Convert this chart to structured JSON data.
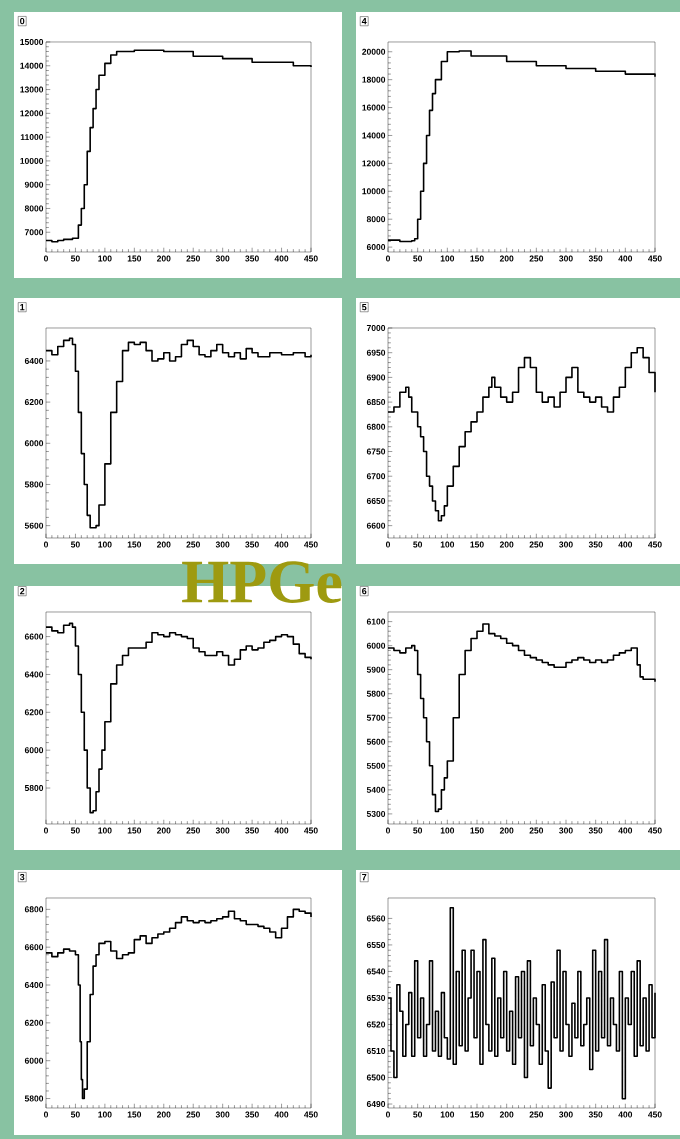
{
  "chart_data": [
    {
      "type": "step",
      "title": "0",
      "x": [
        0,
        10,
        20,
        30,
        45,
        50,
        55,
        60,
        65,
        70,
        75,
        80,
        85,
        90,
        100,
        110,
        120,
        150,
        200,
        250,
        300,
        350,
        400,
        420,
        450
      ],
      "series": [
        {
          "color": "#000000",
          "values": [
            6650,
            6600,
            6650,
            6700,
            6750,
            6750,
            7300,
            8000,
            9000,
            10400,
            11400,
            12200,
            13000,
            13600,
            14100,
            14450,
            14600,
            14650,
            14600,
            14400,
            14300,
            14150,
            14150,
            14000,
            13950
          ]
        }
      ],
      "xlim": [
        0,
        450
      ],
      "xticks": [
        0,
        50,
        100,
        150,
        200,
        250,
        300,
        350,
        400,
        450
      ],
      "ylim": [
        6170,
        15000
      ],
      "yticks": [
        7000,
        8000,
        9000,
        10000,
        11000,
        12000,
        13000,
        14000,
        15000
      ]
    },
    {
      "type": "step",
      "title": "4",
      "x": [
        0,
        20,
        40,
        45,
        50,
        55,
        60,
        65,
        70,
        75,
        80,
        90,
        100,
        120,
        140,
        200,
        250,
        300,
        350,
        400,
        450
      ],
      "series": [
        {
          "color": "#000000",
          "values": [
            6500,
            6400,
            6450,
            6600,
            8000,
            10000,
            12000,
            14000,
            15800,
            17000,
            18000,
            19300,
            20000,
            20050,
            19700,
            19300,
            19000,
            18800,
            18600,
            18400,
            18200
          ]
        }
      ],
      "xlim": [
        0,
        450
      ],
      "xticks": [
        0,
        50,
        100,
        150,
        200,
        250,
        300,
        350,
        400,
        450
      ],
      "ylim": [
        5650,
        20700
      ],
      "yticks": [
        6000,
        8000,
        10000,
        12000,
        14000,
        16000,
        18000,
        20000
      ]
    },
    {
      "type": "step",
      "title": "1",
      "annotations": [
        "HPGe"
      ],
      "x": [
        0,
        10,
        20,
        30,
        40,
        45,
        50,
        55,
        60,
        65,
        70,
        75,
        85,
        90,
        100,
        110,
        120,
        130,
        140,
        150,
        160,
        170,
        180,
        190,
        200,
        210,
        220,
        230,
        240,
        250,
        260,
        270,
        280,
        290,
        300,
        310,
        320,
        330,
        340,
        350,
        360,
        380,
        400,
        420,
        440,
        450
      ],
      "series": [
        {
          "color": "#000000",
          "values": [
            6450,
            6430,
            6470,
            6500,
            6510,
            6480,
            6350,
            6150,
            5950,
            5800,
            5650,
            5590,
            5600,
            5700,
            5900,
            6150,
            6300,
            6450,
            6490,
            6480,
            6490,
            6450,
            6400,
            6410,
            6440,
            6400,
            6420,
            6480,
            6500,
            6470,
            6430,
            6420,
            6450,
            6480,
            6440,
            6420,
            6440,
            6410,
            6460,
            6440,
            6420,
            6440,
            6430,
            6440,
            6420,
            6430
          ]
        }
      ],
      "xlim": [
        0,
        450
      ],
      "xticks": [
        0,
        50,
        100,
        150,
        200,
        250,
        300,
        350,
        400,
        450
      ],
      "ylim": [
        5540,
        6560
      ],
      "yticks": [
        5600,
        5800,
        6000,
        6200,
        6400
      ]
    },
    {
      "type": "step",
      "title": "5",
      "x": [
        0,
        10,
        20,
        30,
        35,
        40,
        50,
        55,
        60,
        65,
        70,
        75,
        80,
        85,
        90,
        95,
        100,
        110,
        120,
        130,
        140,
        150,
        160,
        170,
        175,
        180,
        190,
        200,
        210,
        220,
        230,
        240,
        250,
        260,
        270,
        280,
        290,
        300,
        310,
        320,
        330,
        340,
        350,
        360,
        370,
        380,
        390,
        400,
        410,
        420,
        430,
        440,
        450
      ],
      "series": [
        {
          "color": "#000000",
          "values": [
            6830,
            6840,
            6870,
            6880,
            6860,
            6830,
            6800,
            6780,
            6750,
            6700,
            6680,
            6650,
            6630,
            6610,
            6620,
            6640,
            6680,
            6720,
            6760,
            6790,
            6810,
            6830,
            6860,
            6880,
            6900,
            6880,
            6860,
            6850,
            6870,
            6920,
            6940,
            6920,
            6870,
            6850,
            6860,
            6840,
            6870,
            6900,
            6920,
            6870,
            6860,
            6850,
            6860,
            6840,
            6830,
            6860,
            6880,
            6920,
            6950,
            6960,
            6940,
            6910,
            6870
          ]
        }
      ],
      "xlim": [
        0,
        450
      ],
      "xticks": [
        0,
        50,
        100,
        150,
        200,
        250,
        300,
        350,
        400,
        450
      ],
      "ylim": [
        6575,
        7000
      ],
      "yticks": [
        6600,
        6650,
        6700,
        6750,
        6800,
        6850,
        6900,
        6950,
        7000
      ]
    },
    {
      "type": "step",
      "title": "2",
      "x": [
        0,
        10,
        20,
        30,
        40,
        45,
        50,
        55,
        60,
        65,
        70,
        75,
        80,
        85,
        90,
        95,
        100,
        110,
        120,
        130,
        140,
        150,
        160,
        170,
        180,
        190,
        200,
        210,
        220,
        230,
        240,
        250,
        260,
        270,
        280,
        290,
        300,
        310,
        320,
        330,
        340,
        350,
        360,
        370,
        380,
        390,
        400,
        410,
        420,
        430,
        440,
        450
      ],
      "series": [
        {
          "color": "#000000",
          "values": [
            6650,
            6630,
            6620,
            6660,
            6670,
            6650,
            6550,
            6400,
            6200,
            6000,
            5800,
            5670,
            5680,
            5780,
            5900,
            6000,
            6150,
            6350,
            6450,
            6500,
            6540,
            6540,
            6540,
            6570,
            6620,
            6610,
            6600,
            6620,
            6610,
            6600,
            6590,
            6540,
            6520,
            6500,
            6500,
            6520,
            6500,
            6450,
            6480,
            6530,
            6550,
            6530,
            6540,
            6570,
            6580,
            6600,
            6610,
            6600,
            6560,
            6510,
            6490,
            6480
          ]
        }
      ],
      "xlim": [
        0,
        450
      ],
      "xticks": [
        0,
        50,
        100,
        150,
        200,
        250,
        300,
        350,
        400,
        450
      ],
      "ylim": [
        5610,
        6730
      ],
      "yticks": [
        5800,
        6000,
        6200,
        6400,
        6600
      ]
    },
    {
      "type": "step",
      "title": "6",
      "x": [
        0,
        10,
        20,
        30,
        40,
        45,
        50,
        55,
        60,
        65,
        70,
        75,
        80,
        85,
        90,
        95,
        100,
        110,
        120,
        130,
        140,
        150,
        160,
        170,
        180,
        190,
        200,
        210,
        220,
        230,
        240,
        250,
        260,
        270,
        280,
        290,
        300,
        310,
        320,
        330,
        340,
        350,
        360,
        370,
        380,
        390,
        400,
        410,
        420,
        425,
        430,
        440,
        450
      ],
      "series": [
        {
          "color": "#000000",
          "values": [
            5990,
            5980,
            5970,
            5990,
            6000,
            5980,
            5880,
            5780,
            5700,
            5600,
            5500,
            5380,
            5310,
            5320,
            5400,
            5450,
            5520,
            5700,
            5880,
            5980,
            6030,
            6060,
            6090,
            6050,
            6040,
            6030,
            6010,
            6000,
            5980,
            5960,
            5950,
            5940,
            5930,
            5920,
            5910,
            5910,
            5930,
            5940,
            5950,
            5940,
            5930,
            5940,
            5930,
            5940,
            5960,
            5970,
            5980,
            5990,
            5920,
            5870,
            5860,
            5860,
            5850
          ]
        }
      ],
      "xlim": [
        0,
        450
      ],
      "xticks": [
        0,
        50,
        100,
        150,
        200,
        250,
        300,
        350,
        400,
        450
      ],
      "ylim": [
        5258,
        6140
      ],
      "yticks": [
        5300,
        5400,
        5500,
        5600,
        5700,
        5800,
        5900,
        6000,
        6100
      ]
    },
    {
      "type": "step",
      "title": "3",
      "x": [
        0,
        10,
        20,
        30,
        40,
        50,
        55,
        58,
        60,
        62,
        65,
        70,
        75,
        80,
        85,
        90,
        100,
        110,
        120,
        130,
        140,
        150,
        160,
        170,
        180,
        190,
        200,
        210,
        220,
        230,
        240,
        250,
        260,
        270,
        280,
        290,
        300,
        310,
        320,
        330,
        340,
        350,
        360,
        370,
        380,
        390,
        400,
        410,
        420,
        430,
        440,
        450
      ],
      "series": [
        {
          "color": "#000000",
          "values": [
            6570,
            6550,
            6570,
            6590,
            6580,
            6560,
            6400,
            6100,
            5900,
            5800,
            5850,
            6100,
            6350,
            6500,
            6560,
            6620,
            6630,
            6580,
            6540,
            6560,
            6570,
            6640,
            6660,
            6620,
            6650,
            6670,
            6680,
            6700,
            6730,
            6760,
            6740,
            6730,
            6740,
            6730,
            6740,
            6750,
            6760,
            6790,
            6750,
            6740,
            6720,
            6720,
            6710,
            6700,
            6680,
            6650,
            6700,
            6760,
            6800,
            6790,
            6780,
            6760
          ]
        }
      ],
      "xlim": [
        0,
        450
      ],
      "xticks": [
        0,
        50,
        100,
        150,
        200,
        250,
        300,
        350,
        400,
        450
      ],
      "ylim": [
        5750,
        6860
      ],
      "yticks": [
        5800,
        6000,
        6200,
        6400,
        6600,
        6800
      ]
    },
    {
      "type": "step",
      "title": "7",
      "x": [
        0,
        5,
        10,
        15,
        20,
        25,
        30,
        35,
        40,
        45,
        50,
        55,
        60,
        65,
        70,
        75,
        80,
        85,
        90,
        95,
        100,
        105,
        110,
        115,
        120,
        125,
        130,
        135,
        140,
        145,
        150,
        155,
        160,
        165,
        170,
        175,
        180,
        185,
        190,
        195,
        200,
        205,
        210,
        215,
        220,
        225,
        230,
        235,
        240,
        245,
        250,
        255,
        260,
        265,
        270,
        275,
        280,
        285,
        290,
        295,
        300,
        305,
        310,
        315,
        320,
        325,
        330,
        335,
        340,
        345,
        350,
        355,
        360,
        365,
        370,
        375,
        380,
        385,
        390,
        395,
        400,
        405,
        410,
        415,
        420,
        425,
        430,
        435,
        440,
        445,
        450
      ],
      "series": [
        {
          "color": "#000000",
          "values": [
            6530,
            6510,
            6500,
            6535,
            6525,
            6508,
            6520,
            6532,
            6508,
            6544,
            6515,
            6530,
            6508,
            6520,
            6544,
            6510,
            6525,
            6508,
            6532,
            6515,
            6507,
            6564,
            6505,
            6540,
            6512,
            6548,
            6510,
            6530,
            6548,
            6515,
            6540,
            6505,
            6552,
            6520,
            6510,
            6545,
            6508,
            6530,
            6515,
            6540,
            6510,
            6525,
            6505,
            6538,
            6515,
            6540,
            6500,
            6544,
            6512,
            6530,
            6520,
            6505,
            6535,
            6510,
            6496,
            6536,
            6515,
            6548,
            6510,
            6540,
            6520,
            6508,
            6528,
            6515,
            6540,
            6512,
            6520,
            6530,
            6503,
            6548,
            6510,
            6540,
            6515,
            6552,
            6512,
            6530,
            6520,
            6510,
            6540,
            6492,
            6530,
            6520,
            6540,
            6508,
            6544,
            6512,
            6530,
            6510,
            6535,
            6515,
            6532
          ]
        }
      ],
      "xlim": [
        0,
        450
      ],
      "xticks": [
        0,
        50,
        100,
        150,
        200,
        250,
        300,
        350,
        400,
        450
      ],
      "ylim": [
        6488.5,
        6567.7
      ],
      "yticks": [
        6490,
        6500,
        6510,
        6520,
        6530,
        6540,
        6550,
        6560
      ]
    }
  ]
}
